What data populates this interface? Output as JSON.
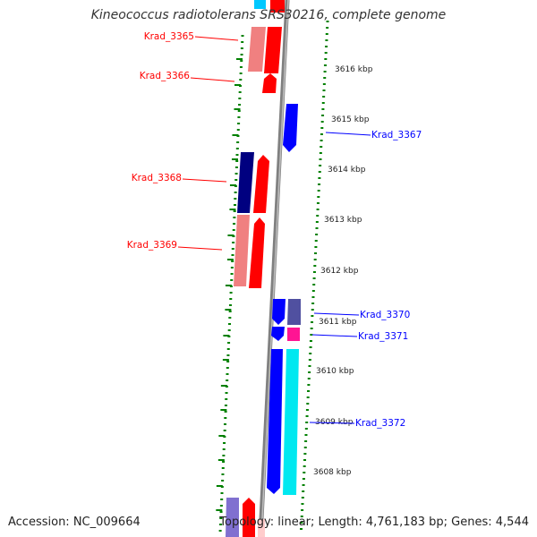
{
  "title": "Kineococcus radiotolerans SRS30216, complete genome",
  "accession": "Accession: NC_009664",
  "topology": "Topology: linear; Length: 4,761,183 bp; Genes: 4,544",
  "colors": {
    "red": "#ff0000",
    "light_red": "#f08080",
    "blue": "#0000ff",
    "navy": "#000080",
    "slate": "#5050a0",
    "cyan": "#00ffff",
    "magenta": "#ff1493",
    "dotted_guide": "#008000",
    "axis": "#808080"
  },
  "kbp_labels": [
    "3616 kbp",
    "3615 kbp",
    "3614 kbp",
    "3613 kbp",
    "3612 kbp",
    "3611 kbp",
    "3610 kbp",
    "3609 kbp",
    "3608 kbp"
  ],
  "gene_labels": [
    {
      "text": "Krad_3365",
      "color": "#ff0000"
    },
    {
      "text": "Krad_3366",
      "color": "#ff0000"
    },
    {
      "text": "Krad_3367",
      "color": "#0000ff"
    },
    {
      "text": "Krad_3368",
      "color": "#ff0000"
    },
    {
      "text": "Krad_3369",
      "color": "#ff0000"
    },
    {
      "text": "Krad_3370",
      "color": "#0000ff"
    },
    {
      "text": "Krad_3371",
      "color": "#0000ff"
    },
    {
      "text": "Krad_3372",
      "color": "#0000ff"
    }
  ]
}
